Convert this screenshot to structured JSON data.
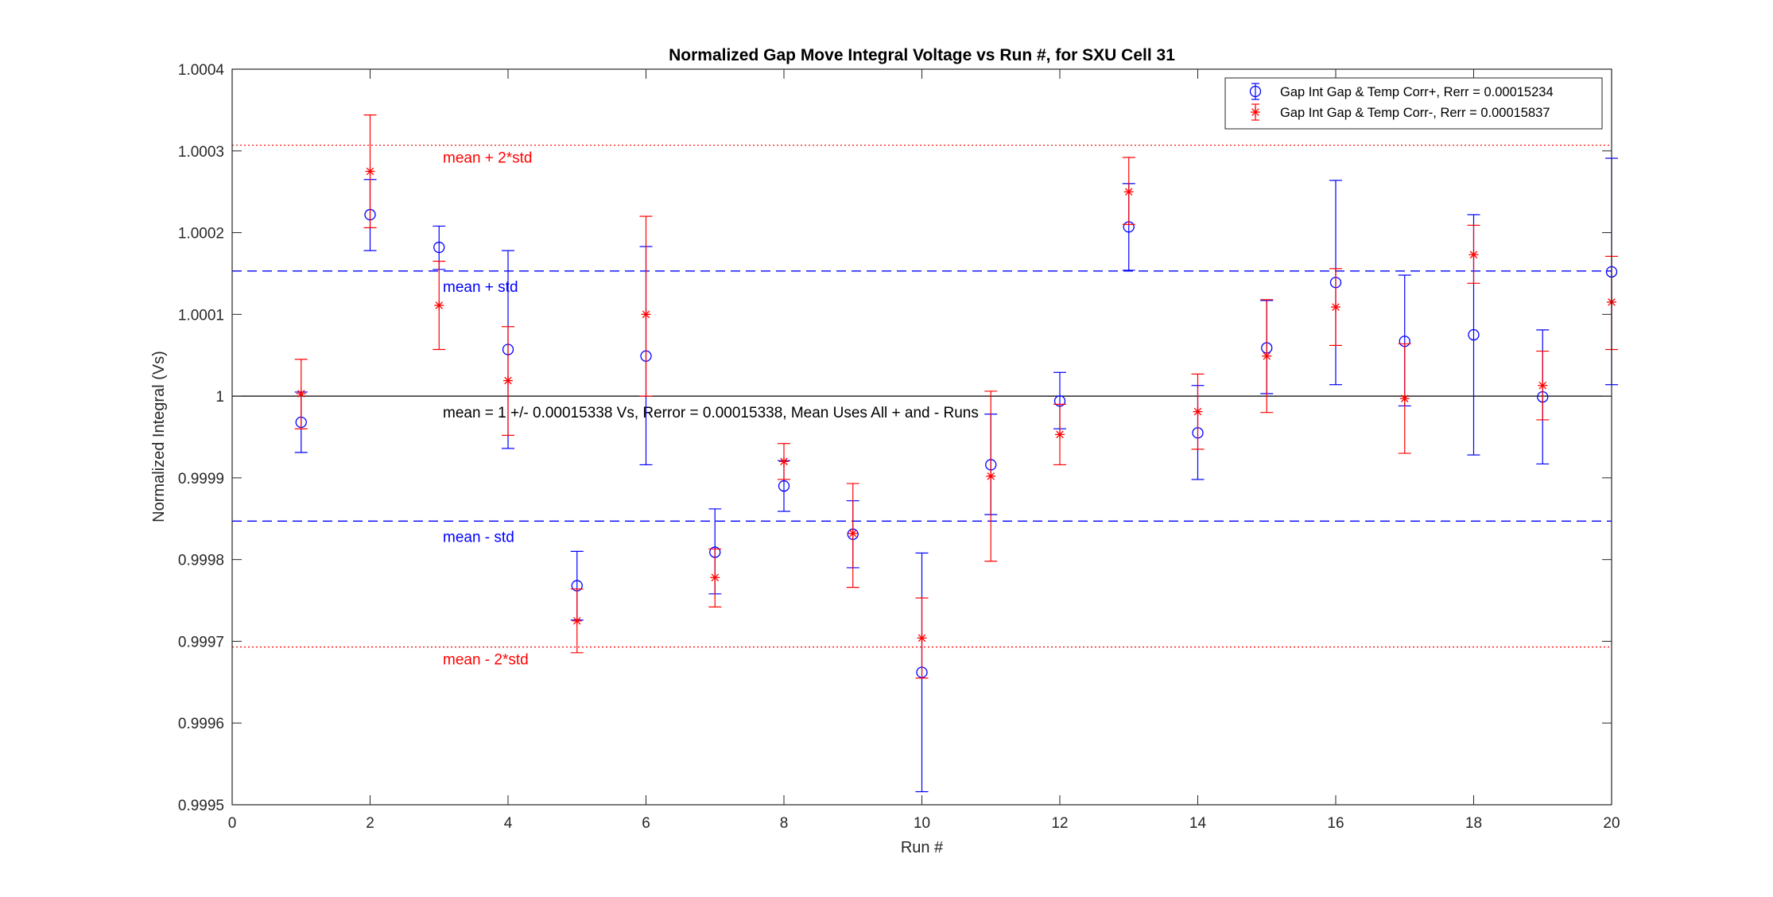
{
  "chart_data": {
    "type": "scatter",
    "title": "Normalized Gap Move Integral Voltage vs Run #, for SXU Cell 31",
    "xlabel": "Run #",
    "ylabel": "Normalized Integral (Vs)",
    "xlim": [
      0,
      20
    ],
    "ylim": [
      0.9995,
      1.0004
    ],
    "xticks": [
      0,
      2,
      4,
      6,
      8,
      10,
      12,
      14,
      16,
      18,
      20
    ],
    "xtick_labels": [
      "0",
      "2",
      "4",
      "6",
      "8",
      "10",
      "12",
      "14",
      "16",
      "18",
      "20"
    ],
    "yticks": [
      0.9995,
      0.9996,
      0.9997,
      0.9998,
      0.9999,
      1.0,
      1.0001,
      1.0002,
      1.0003,
      1.0004
    ],
    "ytick_labels": [
      "0.9995",
      "0.9996",
      "0.9997",
      "0.9998",
      "0.9999",
      "1",
      "1.0001",
      "1.0002",
      "1.0003",
      "1.0004"
    ],
    "grid": false,
    "legend_position": "top-right",
    "series": [
      {
        "name": "Gap Int Gap & Temp Corr+, Rerr = 0.00015234",
        "color": "#0000ff",
        "marker": "circle",
        "x": [
          1,
          2,
          3,
          4,
          5,
          6,
          7,
          8,
          9,
          10,
          11,
          12,
          13,
          14,
          15,
          16,
          17,
          18,
          19,
          20
        ],
        "y": [
          0.999968,
          1.000222,
          1.000182,
          1.000057,
          0.999768,
          1.000049,
          0.999809,
          0.99989,
          0.999831,
          0.999662,
          0.999916,
          0.999994,
          1.000207,
          0.999955,
          1.000059,
          1.000139,
          1.000067,
          1.000075,
          0.999999,
          1.000152
        ],
        "lower": [
          0.999931,
          1.000178,
          1.000155,
          0.999936,
          0.999726,
          0.999916,
          0.999758,
          0.999859,
          0.99979,
          0.999516,
          0.999855,
          0.99996,
          1.000154,
          0.999898,
          1.000003,
          1.000014,
          0.999988,
          0.999928,
          0.999917,
          1.000014
        ],
        "upper": [
          1.000005,
          1.000265,
          1.000208,
          1.000178,
          0.99981,
          1.000183,
          0.999862,
          0.999921,
          0.999872,
          0.999808,
          0.999978,
          1.000029,
          1.00026,
          1.000013,
          1.000117,
          1.000264,
          1.000148,
          1.000222,
          1.000081,
          1.000291
        ]
      },
      {
        "name": "Gap Int Gap & Temp  Corr-, Rerr = 0.00015837",
        "color": "#ff0000",
        "marker": "asterisk",
        "x": [
          1,
          2,
          3,
          4,
          5,
          6,
          7,
          8,
          9,
          10,
          11,
          12,
          13,
          14,
          15,
          16,
          17,
          18,
          19,
          20
        ],
        "y": [
          1.000003,
          1.000275,
          1.000111,
          1.000019,
          0.999725,
          1.0001,
          0.999778,
          0.99992,
          0.999832,
          0.999704,
          0.999902,
          0.999953,
          1.00025,
          0.999981,
          1.000049,
          1.000109,
          0.999997,
          1.000173,
          1.000013,
          1.000115
        ],
        "lower": [
          0.99996,
          1.000206,
          1.000057,
          0.999952,
          0.999686,
          1.0,
          0.999742,
          0.999898,
          0.999766,
          0.999655,
          0.999798,
          0.999916,
          1.00021,
          0.999935,
          0.99998,
          1.000062,
          0.99993,
          1.000138,
          0.999971,
          1.000057
        ],
        "upper": [
          1.000045,
          1.000344,
          1.000165,
          1.000085,
          0.999764,
          1.00022,
          0.999813,
          0.999942,
          0.999893,
          0.999753,
          1.000006,
          0.99999,
          1.000292,
          1.000027,
          1.000118,
          1.000156,
          1.000064,
          1.000209,
          1.000055,
          1.000171
        ]
      }
    ],
    "reference_lines": [
      {
        "y": 1.000307,
        "color": "#ff0000",
        "style": "dotted",
        "label": "mean + 2*std"
      },
      {
        "y": 1.000153,
        "color": "#0000ff",
        "style": "dashed",
        "label": "mean + std"
      },
      {
        "y": 1.0,
        "color": "#000000",
        "style": "solid",
        "label": "mean = 1 +/- 0.00015338 Vs, Rerror = 0.00015338, Mean Uses All + and - Runs"
      },
      {
        "y": 0.999847,
        "color": "#0000ff",
        "style": "dashed",
        "label": "mean - std"
      },
      {
        "y": 0.999693,
        "color": "#ff0000",
        "style": "dotted",
        "label": "mean - 2*std"
      }
    ]
  }
}
